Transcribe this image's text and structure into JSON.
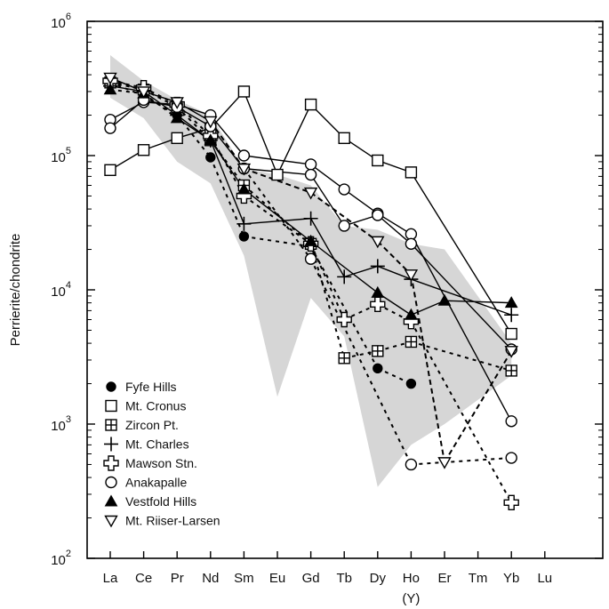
{
  "chart_data": {
    "type": "line",
    "ylabel": "Perrierite/chondrite",
    "yscale": "log",
    "ylim": [
      100,
      1000000
    ],
    "y_tick_labels": [
      {
        "base": "10",
        "exp": "2",
        "value": 100
      },
      {
        "base": "10",
        "exp": "3",
        "value": 1000
      },
      {
        "base": "10",
        "exp": "4",
        "value": 10000
      },
      {
        "base": "10",
        "exp": "5",
        "value": 100000
      },
      {
        "base": "10",
        "exp": "6",
        "value": 1000000
      }
    ],
    "categories": [
      "La",
      "Ce",
      "Pr",
      "Nd",
      "Sm",
      "Eu",
      "Gd",
      "Tb",
      "Dy",
      "Ho",
      "Er",
      "Tm",
      "Yb",
      "Lu"
    ],
    "category_sublabel": {
      "category": "Ho",
      "text": "(Y)"
    },
    "envelope": {
      "fill": "#d6d6d6",
      "upper": [
        [
          "La",
          560000
        ],
        [
          "Ce",
          360000
        ],
        [
          "Pr",
          260000
        ],
        [
          "Nd",
          200000
        ],
        [
          "Sm",
          80000
        ],
        [
          "Eu",
          72000
        ],
        [
          "Gd",
          60000
        ],
        [
          "Tb",
          30000
        ],
        [
          "Dy",
          28000
        ],
        [
          "Ho",
          22000
        ],
        [
          "Er",
          20000
        ],
        [
          "Yb",
          4000
        ]
      ],
      "lower": [
        [
          "Yb",
          2300
        ],
        [
          "Er",
          1000
        ],
        [
          "Ho",
          700
        ],
        [
          "Dy",
          340
        ],
        [
          "Tb",
          4500
        ],
        [
          "Gd",
          8700
        ],
        [
          "Eu",
          1600
        ],
        [
          "Sm",
          18000
        ],
        [
          "Nd",
          62000
        ],
        [
          "Pr",
          90000
        ],
        [
          "Ce",
          190000
        ],
        [
          "La",
          270000
        ]
      ]
    },
    "series": [
      {
        "name": "Fyfe Hills",
        "marker": "filled-circle",
        "color": "#000000",
        "samples": [
          {
            "points": [
              [
                "La",
                350000
              ],
              [
                "Ce",
                280000
              ],
              [
                "Pr",
                200000
              ],
              [
                "Nd",
                97000
              ],
              [
                "Sm",
                25000
              ],
              [
                "Gd",
                21000
              ],
              [
                "Dy",
                2600
              ],
              [
                "Ho",
                2000
              ]
            ],
            "dash": [
              [
                4,
                5
              ]
            ]
          }
        ]
      },
      {
        "name": "Mt. Cronus",
        "marker": "open-square",
        "color": "#000000",
        "samples": [
          {
            "points": [
              [
                "La",
                78000
              ],
              [
                "Ce",
                110000
              ],
              [
                "Pr",
                135000
              ],
              [
                "Nd",
                160000
              ],
              [
                "Sm",
                300000
              ],
              [
                "Eu",
                72000
              ],
              [
                "Gd",
                240000
              ],
              [
                "Tb",
                135000
              ],
              [
                "Dy",
                92000
              ],
              [
                "Ho",
                75000
              ],
              [
                "Yb",
                4700
              ]
            ]
          }
        ]
      },
      {
        "name": "Zircon Pt.",
        "marker": "square-plus",
        "color": "#000000",
        "samples": [
          {
            "points": [
              [
                "La",
                350000
              ],
              [
                "Ce",
                310000
              ],
              [
                "Pr",
                230000
              ],
              [
                "Nd",
                130000
              ],
              [
                "Sm",
                60000
              ],
              [
                "Gd",
                22000
              ],
              [
                "Tb",
                3100
              ],
              [
                "Dy",
                3500
              ],
              [
                "Ho",
                4100
              ],
              [
                "Yb",
                2500
              ]
            ],
            "dash": [
              [
                4,
                5
              ]
            ]
          }
        ]
      },
      {
        "name": "Mt. Charles",
        "marker": "plus",
        "color": "#000000",
        "samples": [
          {
            "points": [
              [
                "La",
                330000
              ],
              [
                "Ce",
                300000
              ],
              [
                "Pr",
                200000
              ],
              [
                "Nd",
                130000
              ],
              [
                "Sm",
                31000
              ],
              [
                "Gd",
                34000
              ],
              [
                "Tb",
                12500
              ],
              [
                "Dy",
                15000
              ],
              [
                "Ho",
                12000
              ],
              [
                "Yb",
                6500
              ]
            ]
          }
        ]
      },
      {
        "name": "Mawson Stn.",
        "marker": "open-cross",
        "color": "#000000",
        "samples": [
          {
            "points": [
              [
                "La",
                360000
              ],
              [
                "Ce",
                320000
              ],
              [
                "Pr",
                240000
              ],
              [
                "Nd",
                140000
              ],
              [
                "Sm",
                50000
              ],
              [
                "Gd",
                22000
              ],
              [
                "Tb",
                6000
              ],
              [
                "Dy",
                7800
              ],
              [
                "Ho",
                5800
              ],
              [
                "Yb",
                260
              ]
            ],
            "dash": [
              [
                4,
                5
              ]
            ]
          }
        ]
      },
      {
        "name": "Anakapalle",
        "marker": "open-circle",
        "color": "#000000",
        "samples": [
          {
            "points": [
              [
                "La",
                185000
              ],
              [
                "Ce",
                250000
              ],
              [
                "Pr",
                240000
              ],
              [
                "Nd",
                200000
              ],
              [
                "Sm",
                100000
              ],
              [
                "Gd",
                86000
              ],
              [
                "Tb",
                56000
              ],
              [
                "Dy",
                37000
              ],
              [
                "Ho",
                26000
              ],
              [
                "Yb",
                1050
              ]
            ]
          },
          {
            "points": [
              [
                "La",
                160000
              ],
              [
                "Ce",
                260000
              ],
              [
                "Pr",
                230000
              ],
              [
                "Nd",
                165000
              ],
              [
                "Sm",
                80000
              ],
              [
                "Gd",
                72000
              ],
              [
                "Tb",
                30000
              ],
              [
                "Dy",
                36000
              ],
              [
                "Ho",
                22000
              ],
              [
                "Yb",
                3600
              ]
            ]
          },
          {
            "points": [
              [
                "Sm",
                80000
              ],
              [
                "Gd",
                17000
              ],
              [
                "Ho",
                500
              ],
              [
                "Yb",
                560
              ]
            ],
            "dash": [
              [
                4,
                5
              ]
            ]
          }
        ]
      },
      {
        "name": "Vestfold Hills",
        "marker": "filled-triangle",
        "color": "#000000",
        "samples": [
          {
            "points": [
              [
                "La",
                310000
              ],
              [
                "Ce",
                290000
              ],
              [
                "Pr",
                190000
              ],
              [
                "Nd",
                130000
              ],
              [
                "Sm",
                56000
              ],
              [
                "Gd",
                23000
              ],
              [
                "Dy",
                9500
              ],
              [
                "Ho",
                6500
              ],
              [
                "Er",
                8300
              ],
              [
                "Yb",
                8000
              ]
            ],
            "dash": [
              [
                4,
                5
              ],
              [
                4,
                5
              ],
              [],
              [],
              [],
              [],
              [],
              [],
              []
            ]
          }
        ]
      },
      {
        "name": "Mt. Riiser-Larsen",
        "marker": "open-triangle-down",
        "color": "#000000",
        "samples": [
          {
            "points": [
              [
                "La",
                380000
              ],
              [
                "Ce",
                300000
              ],
              [
                "Pr",
                250000
              ],
              [
                "Nd",
                180000
              ],
              [
                "Sm",
                80000
              ],
              [
                "Gd",
                53000
              ],
              [
                "Dy",
                23000
              ],
              [
                "Ho",
                13000
              ],
              [
                "Er",
                520
              ],
              [
                "Yb",
                3500
              ]
            ],
            "dash": [
              [],
              [],
              [],
              [
                6,
                4
              ],
              [
                6,
                4
              ],
              [
                6,
                4
              ],
              [
                6,
                4
              ],
              [
                6,
                4
              ],
              [
                6,
                4
              ]
            ]
          }
        ]
      }
    ],
    "legend_position": "bottom-left",
    "grid": false
  }
}
